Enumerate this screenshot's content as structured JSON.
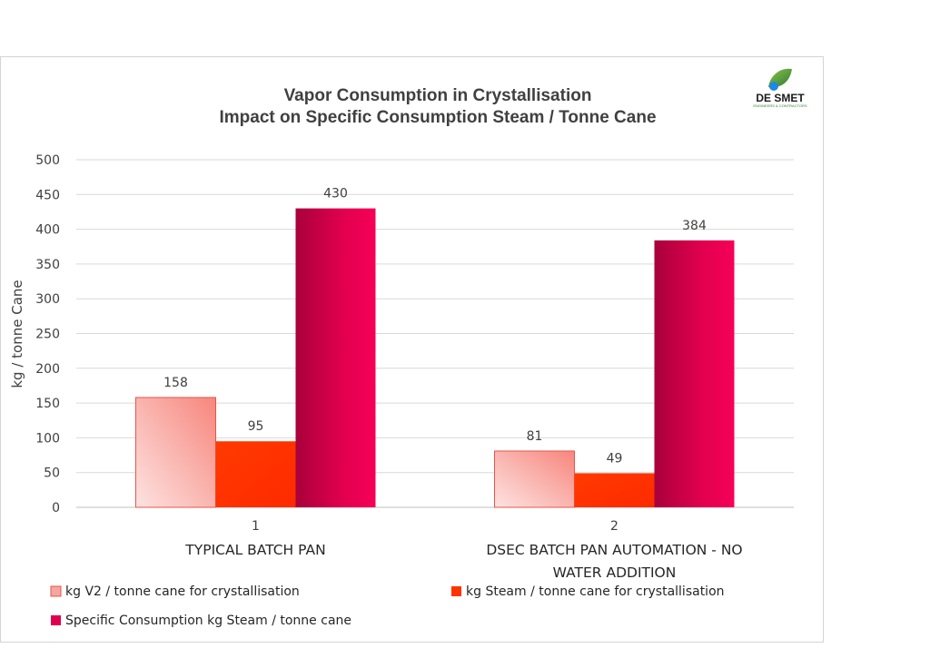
{
  "chart_data": {
    "type": "bar",
    "title": "Vapor Consumption in Crystallisation",
    "subtitle": "Impact on Specific Consumption Steam / Tonne Cane",
    "xlabel": "",
    "ylabel": "kg / tonne Cane",
    "ylim": [
      0,
      500
    ],
    "yticks": [
      0,
      50,
      100,
      150,
      200,
      250,
      300,
      350,
      400,
      450,
      500
    ],
    "grid": true,
    "legend_position": "bottom",
    "categories": [
      {
        "number": "1",
        "label_lines": [
          "TYPICAL BATCH PAN"
        ]
      },
      {
        "number": "2",
        "label_lines": [
          "DSEC BATCH PAN AUTOMATION - NO",
          "WATER ADDITION"
        ]
      }
    ],
    "series": [
      {
        "name": "kg V2 / tonne cane for crystallisation",
        "color": "#f4a6a0",
        "values": [
          158,
          81
        ]
      },
      {
        "name": "kg Steam / tonne cane for crystallisation",
        "color": "#ff3300",
        "values": [
          95,
          49
        ]
      },
      {
        "name": "Specific Consumption kg Steam / tonne cane",
        "color": "#e0004d",
        "values": [
          430,
          384
        ]
      }
    ]
  },
  "logo": {
    "name": "DE SMET",
    "tagline": "ENGINEERS & CONTRACTORS"
  }
}
